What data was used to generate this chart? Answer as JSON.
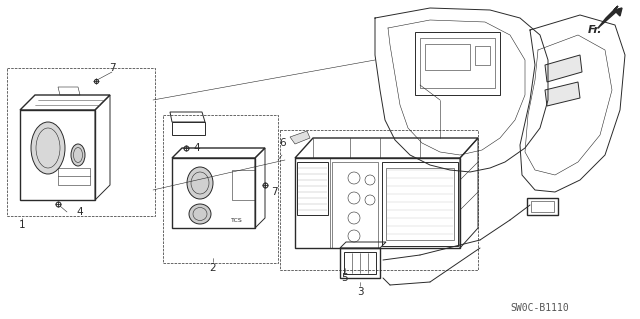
{
  "bg_color": "#ffffff",
  "line_color": "#2a2a2a",
  "label_color": "#2a2a2a",
  "diagram_code": "SW0C-B1110",
  "fr_label": "Fr.",
  "lw": 0.7,
  "lw_thick": 1.0,
  "lw_thin": 0.4,
  "label_fontsize": 7.5,
  "code_fontsize": 7.0
}
